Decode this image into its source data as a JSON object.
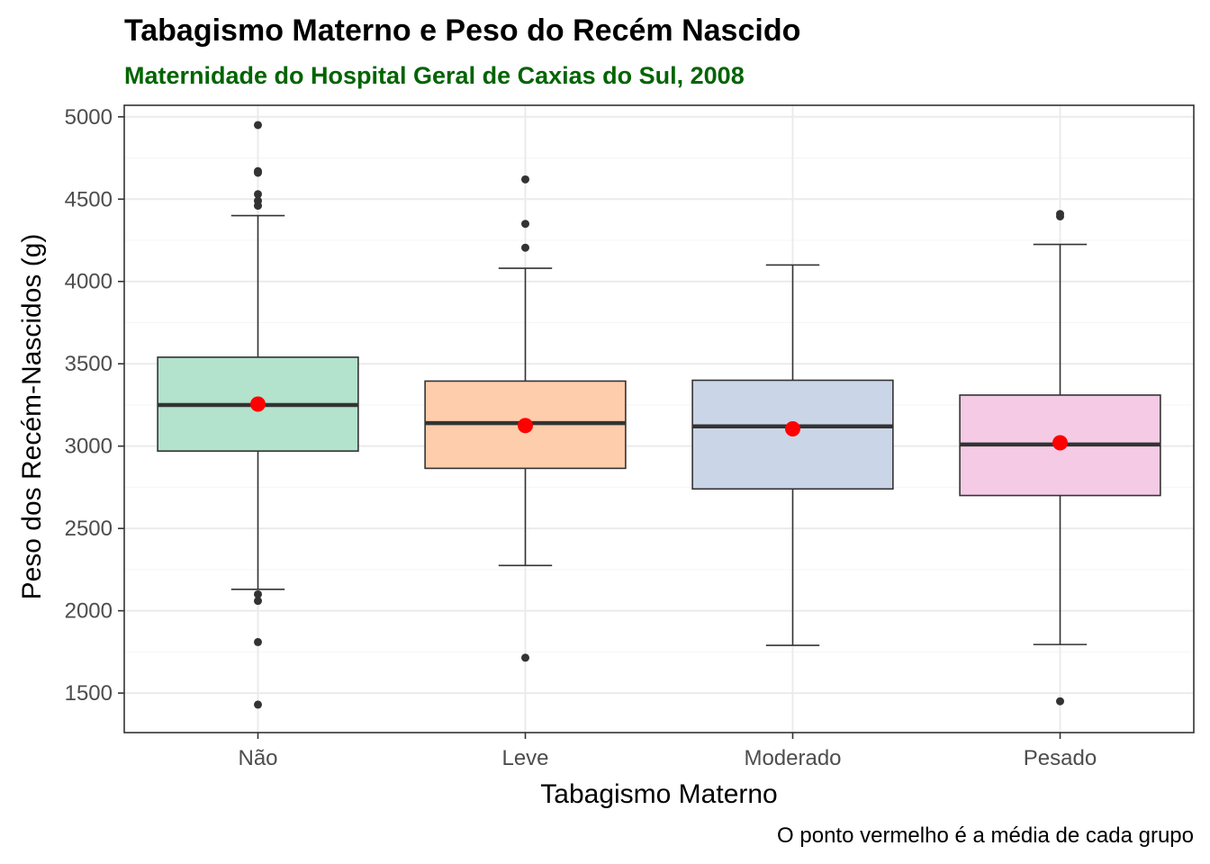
{
  "colors": {
    "subtitle": "#006400",
    "mean_point": "#ff0000",
    "outlier": "#333333",
    "box_stroke": "#333333",
    "grid_major": "#ebebeb",
    "grid_minor": "#f5f5f5",
    "panel_border": "#333333",
    "fills": [
      "#b3e2cd",
      "#fdcdac",
      "#cbd5e8",
      "#f4cae4"
    ]
  },
  "chart_data": {
    "type": "boxplot",
    "title": "Tabagismo Materno e Peso do Recém Nascido",
    "subtitle": "Maternidade do Hospital Geral de Caxias do Sul, 2008",
    "xlabel": "Tabagismo Materno",
    "ylabel": "Peso dos Recém-Nascidos (g)",
    "caption": "O ponto vermelho é a média de cada grupo",
    "ylim": [
      1260,
      5070
    ],
    "yticks": [
      1500,
      2000,
      2500,
      3000,
      3500,
      4000,
      4500,
      5000
    ],
    "ytick_labels": [
      "1500",
      "2000",
      "2500",
      "3000",
      "3500",
      "4000",
      "4500",
      "5000"
    ],
    "categories": [
      "Não",
      "Leve",
      "Moderado",
      "Pesado"
    ],
    "groups": [
      {
        "name": "Não",
        "whisker_low": 2130,
        "q1": 2970,
        "median": 3250,
        "q3": 3540,
        "whisker_high": 4400,
        "mean": 3255,
        "outliers": [
          4950,
          4670,
          4660,
          4530,
          4490,
          4460,
          2100,
          2060,
          1810,
          1430
        ]
      },
      {
        "name": "Leve",
        "whisker_low": 2275,
        "q1": 2865,
        "median": 3140,
        "q3": 3395,
        "whisker_high": 4080,
        "mean": 3125,
        "outliers": [
          4620,
          4350,
          4205,
          1715
        ]
      },
      {
        "name": "Moderado",
        "whisker_low": 1790,
        "q1": 2740,
        "median": 3120,
        "q3": 3400,
        "whisker_high": 4100,
        "mean": 3105,
        "outliers": []
      },
      {
        "name": "Pesado",
        "whisker_low": 1795,
        "q1": 2700,
        "median": 3010,
        "q3": 3310,
        "whisker_high": 4225,
        "mean": 3020,
        "outliers": [
          4410,
          4395,
          1450
        ]
      }
    ]
  }
}
